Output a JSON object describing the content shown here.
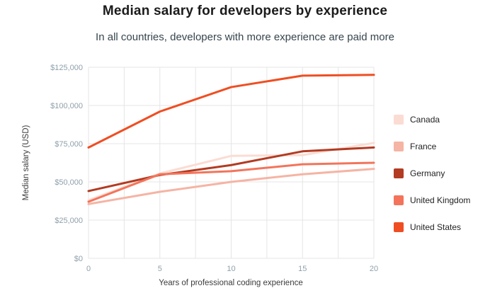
{
  "chart": {
    "title": "Median salary for developers by experience",
    "subtitle": "In all countries, developers with more experience are paid more"
  },
  "chart_data": {
    "type": "line",
    "title": "Median salary for developers by experience",
    "subtitle": "In all countries, developers with more experience are paid more",
    "xlabel": "Years of professional coding experience",
    "ylabel": "Median salary (USD)",
    "xlim": [
      0,
      20
    ],
    "ylim": [
      0,
      125000
    ],
    "grid": true,
    "legend_position": "right",
    "x": [
      0,
      5,
      10,
      15,
      20
    ],
    "x_ticks": [
      {
        "value": 0,
        "label": "0"
      },
      {
        "value": 5,
        "label": "5"
      },
      {
        "value": 10,
        "label": "10"
      },
      {
        "value": 15,
        "label": "15"
      },
      {
        "value": 20,
        "label": "20"
      }
    ],
    "y_ticks": [
      {
        "value": 0,
        "label": "$0"
      },
      {
        "value": 25000,
        "label": "$25,000"
      },
      {
        "value": 50000,
        "label": "$50,000"
      },
      {
        "value": 75000,
        "label": "$75,000"
      },
      {
        "value": 100000,
        "label": "$100,000"
      },
      {
        "value": 125000,
        "label": "$125,000"
      }
    ],
    "series": [
      {
        "name": "Canada",
        "color": "#fbdcd3",
        "values": [
          38000,
          55500,
          67000,
          67500,
          75500
        ]
      },
      {
        "name": "France",
        "color": "#f5b4a4",
        "values": [
          35500,
          43500,
          50000,
          55000,
          58500
        ]
      },
      {
        "name": "Germany",
        "color": "#b23b22",
        "values": [
          44000,
          54500,
          61000,
          70000,
          72500
        ]
      },
      {
        "name": "United Kingdom",
        "color": "#f3745b",
        "values": [
          37000,
          55000,
          57000,
          61500,
          62500
        ]
      },
      {
        "name": "United States",
        "color": "#ef4e22",
        "values": [
          72500,
          96000,
          112000,
          119500,
          120000
        ]
      }
    ],
    "colors": {
      "grid": "#e5e5e5",
      "tick_label": "#8fa0ab",
      "axis_label": "#3c3c3c"
    }
  }
}
